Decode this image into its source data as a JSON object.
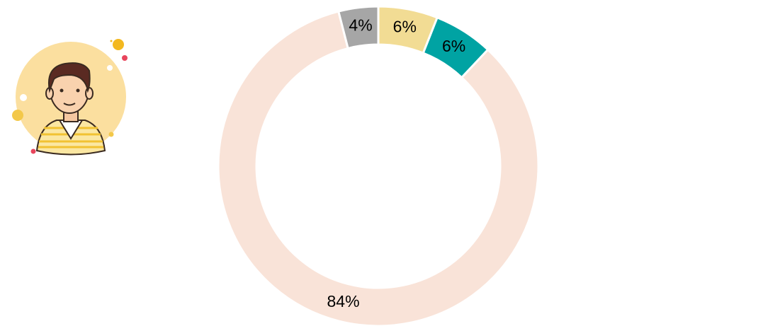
{
  "chart_data": {
    "type": "donut",
    "values": [
      6,
      6,
      84,
      4
    ],
    "value_labels": [
      "6%",
      "6%",
      "84%",
      "4%"
    ],
    "colors": [
      "#f2dc94",
      "#00a3a3",
      "#f9e3d8",
      "#a6a6a6"
    ]
  }
}
